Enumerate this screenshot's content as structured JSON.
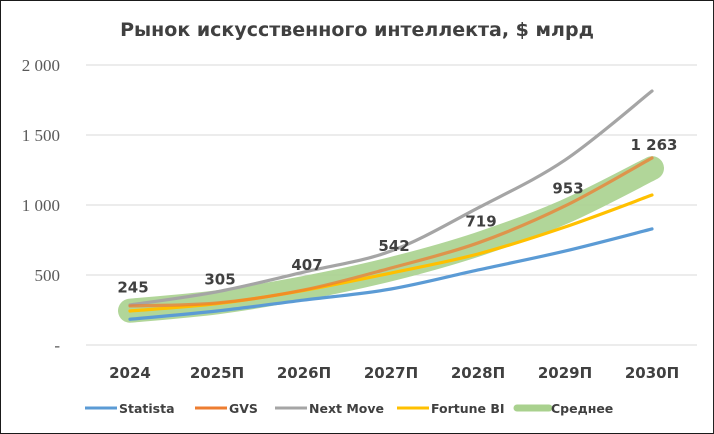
{
  "chart_data": {
    "type": "line",
    "title": "Рынок искусственного интеллекта, $ млрд",
    "xlabel": "",
    "ylabel": "",
    "categories": [
      "2024",
      "2025П",
      "2026П",
      "2027П",
      "2028П",
      "2029П",
      "2030П"
    ],
    "ylim": [
      0,
      2000
    ],
    "yticks": [
      0,
      500,
      1000,
      1500,
      2000
    ],
    "ytick_labels": [
      "-",
      "500",
      "1 000",
      "1 500",
      "2 000"
    ],
    "grid": true,
    "legend_position": "bottom",
    "series": [
      {
        "name": "Statista",
        "color": "#5b9bd5",
        "values": [
          184,
          243,
          321,
          400,
          536,
          671,
          829
        ]
      },
      {
        "name": "GVS",
        "color": "#ed7d31",
        "values": [
          279,
          300,
          393,
          550,
          729,
          993,
          1336
        ]
      },
      {
        "name": "Next Move",
        "color": "#a5a5a5",
        "values": [
          286,
          380,
          521,
          671,
          979,
          1321,
          1814
        ]
      },
      {
        "name": "Fortune BI",
        "color": "#ffc000",
        "values": [
          243,
          295,
          390,
          514,
          650,
          843,
          1071
        ]
      },
      {
        "name": "Среднее",
        "color": "#a9d18e",
        "values": [
          245,
          305,
          407,
          542,
          719,
          953,
          1263
        ],
        "data_labels": [
          "245",
          "305",
          "407",
          "542",
          "719",
          "953",
          "1 263"
        ]
      }
    ]
  }
}
